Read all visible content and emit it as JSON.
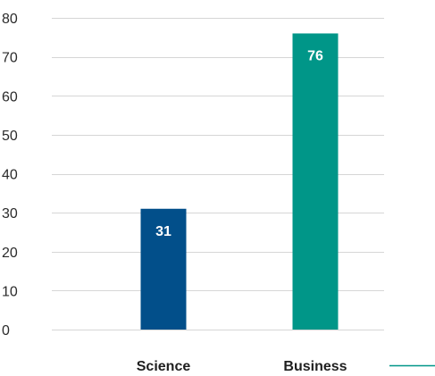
{
  "chart_data": {
    "type": "bar",
    "title": "",
    "xlabel": "",
    "ylabel": "",
    "categories": [
      "Science",
      "Business"
    ],
    "values": [
      31,
      76
    ],
    "data_labels": [
      "31",
      "76"
    ],
    "ylim": [
      0,
      80
    ],
    "yticks": [
      0,
      10,
      20,
      30,
      40,
      50,
      60,
      70,
      80
    ],
    "ytick_labels": [
      "0",
      "10",
      "20",
      "30",
      "40",
      "50",
      "60",
      "70",
      "80"
    ],
    "bar_colors": [
      "#024f8a",
      "#009688"
    ],
    "grid": true,
    "grid_color": "#d6d6d6",
    "legend": {
      "placement": "bottom-right",
      "marker": "line",
      "color": "#009688"
    }
  }
}
